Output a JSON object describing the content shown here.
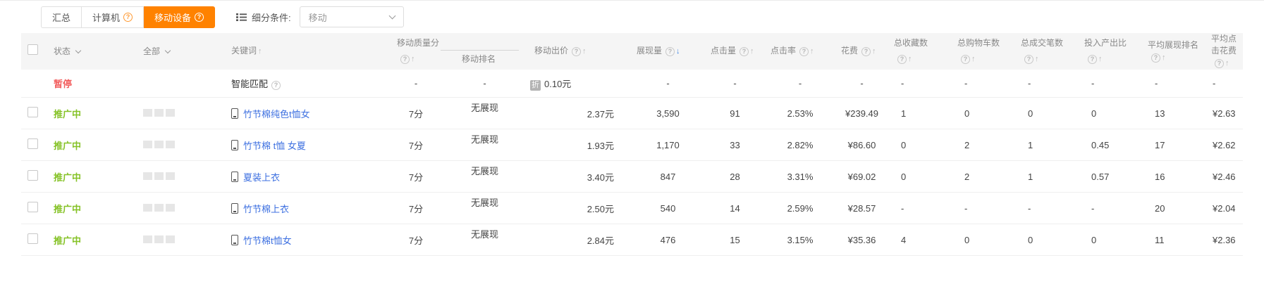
{
  "colors": {
    "accent_orange": "#ff8200",
    "status_active_green": "#85c226",
    "status_paused_red": "#f25d5d",
    "link_blue": "#3c6fe0",
    "sort_active_blue": "#3d85e4"
  },
  "toolbar": {
    "tabs": [
      {
        "label": "汇总",
        "active": false,
        "help": false
      },
      {
        "label": "计算机",
        "active": false,
        "help": true
      },
      {
        "label": "移动设备",
        "active": true,
        "help": true
      }
    ],
    "filter_label": "细分条件:",
    "filter_value": "移动"
  },
  "table": {
    "header": {
      "status": "状态",
      "all": "全部",
      "keyword": "关键词",
      "quality": "移动质量分",
      "rank": "移动排名",
      "bid": "移动出价",
      "impressions": "展现量",
      "clicks": "点击量",
      "ctr": "点击率",
      "cost": "花费",
      "favorites": "总收藏数",
      "carts": "总购物车数",
      "orders": "总成交笔数",
      "roi": "投入产出比",
      "avg_rank": "平均展现排名",
      "avg_cpc": "平均点击花费"
    },
    "rows": [
      {
        "status": "暂停",
        "status_type": "paused",
        "checkbox": false,
        "squares": false,
        "keyword": "智能匹配",
        "keyword_type": "smart",
        "quality": "-",
        "rank": "-",
        "bid": "0.10元",
        "bid_badge": "折",
        "impressions": "-",
        "clicks": "-",
        "ctr": "-",
        "cost": "-",
        "favorites": "-",
        "carts": "-",
        "orders": "-",
        "roi": "-",
        "avg_rank": "-",
        "avg_cpc": "-"
      },
      {
        "status": "推广中",
        "status_type": "active",
        "checkbox": true,
        "squares": true,
        "keyword": "竹节棉纯色t恤女",
        "keyword_type": "link",
        "quality": "7分",
        "rank": "无展现",
        "bid": "2.37元",
        "bid_badge": "",
        "impressions": "3,590",
        "clicks": "91",
        "ctr": "2.53%",
        "cost": "¥239.49",
        "favorites": "1",
        "carts": "0",
        "orders": "0",
        "roi": "0",
        "avg_rank": "13",
        "avg_cpc": "¥2.63"
      },
      {
        "status": "推广中",
        "status_type": "active",
        "checkbox": true,
        "squares": true,
        "keyword": "竹节棉 t恤 女夏",
        "keyword_type": "link",
        "quality": "7分",
        "rank": "无展现",
        "bid": "1.93元",
        "bid_badge": "",
        "impressions": "1,170",
        "clicks": "33",
        "ctr": "2.82%",
        "cost": "¥86.60",
        "favorites": "0",
        "carts": "2",
        "orders": "1",
        "roi": "0.45",
        "avg_rank": "17",
        "avg_cpc": "¥2.62"
      },
      {
        "status": "推广中",
        "status_type": "active",
        "checkbox": true,
        "squares": true,
        "keyword": "夏装上衣",
        "keyword_type": "link",
        "quality": "7分",
        "rank": "无展现",
        "bid": "3.40元",
        "bid_badge": "",
        "impressions": "847",
        "clicks": "28",
        "ctr": "3.31%",
        "cost": "¥69.02",
        "favorites": "0",
        "carts": "2",
        "orders": "1",
        "roi": "0.57",
        "avg_rank": "16",
        "avg_cpc": "¥2.46"
      },
      {
        "status": "推广中",
        "status_type": "active",
        "checkbox": true,
        "squares": true,
        "keyword": "竹节棉上衣",
        "keyword_type": "link",
        "quality": "7分",
        "rank": "无展现",
        "bid": "2.50元",
        "bid_badge": "",
        "impressions": "540",
        "clicks": "14",
        "ctr": "2.59%",
        "cost": "¥28.57",
        "favorites": "-",
        "carts": "-",
        "orders": "-",
        "roi": "-",
        "avg_rank": "20",
        "avg_cpc": "¥2.04"
      },
      {
        "status": "推广中",
        "status_type": "active",
        "checkbox": true,
        "squares": true,
        "keyword": "竹节棉t恤女",
        "keyword_type": "link",
        "quality": "7分",
        "rank": "无展现",
        "bid": "2.84元",
        "bid_badge": "",
        "impressions": "476",
        "clicks": "15",
        "ctr": "3.15%",
        "cost": "¥35.36",
        "favorites": "4",
        "carts": "0",
        "orders": "0",
        "roi": "0",
        "avg_rank": "11",
        "avg_cpc": "¥2.36"
      }
    ]
  }
}
